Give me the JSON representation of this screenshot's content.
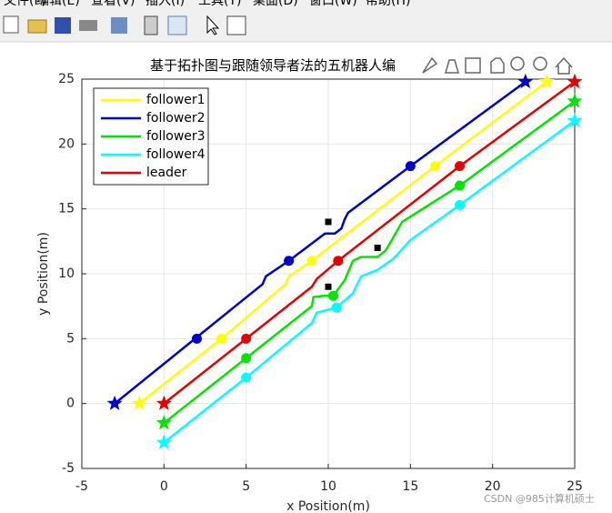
{
  "menu": [
    "文件(F)",
    "编辑(E)",
    "查看(V)",
    "插入(I)",
    "工具(T)",
    "桌面(D)",
    "窗口(W)",
    "帮助(H)"
  ],
  "watermark": "CSDN @985计算机硕士",
  "chart_data": {
    "type": "line",
    "title": "基于拓扑图与跟随领导者法的五机器人编",
    "x_label": "x Position(m)",
    "y_label": "y Position(m)",
    "xlim": [
      -5,
      25
    ],
    "ylim": [
      -5,
      25
    ],
    "xticks": [
      -5,
      0,
      5,
      10,
      15,
      20,
      25
    ],
    "yticks": [
      -5,
      0,
      5,
      10,
      15,
      20,
      25
    ],
    "grid": true,
    "legend": "upper left",
    "series": [
      {
        "name": "follower1",
        "color": "#ffff00",
        "x": [
          -1.5,
          3.5,
          7.4,
          7.6,
          9,
          16.5,
          23.3
        ],
        "y": [
          0,
          5,
          9.2,
          9.8,
          11,
          18.3,
          24.8
        ],
        "marker_x": [
          -1.5,
          3.5,
          9,
          16.5,
          23.3
        ],
        "marker_y": [
          0,
          5,
          11,
          18.3,
          24.8
        ]
      },
      {
        "name": "follower2",
        "color": "#0000cc",
        "x": [
          -3,
          6,
          6.2,
          7.6,
          9.8,
          10.4,
          10.8,
          11,
          11.2,
          15,
          22
        ],
        "y": [
          0,
          9.2,
          9.8,
          11,
          13.1,
          13.1,
          13.5,
          14.2,
          14.7,
          18.3,
          24.8
        ],
        "marker_x": [
          -3,
          2,
          7.6,
          15,
          22
        ],
        "marker_y": [
          0,
          5,
          11,
          18.3,
          24.8
        ]
      },
      {
        "name": "follower3",
        "color": "#00e600",
        "x": [
          0,
          5,
          9,
          9.1,
          9.7,
          10.3,
          11,
          11.5,
          12,
          13,
          13.5,
          14.5,
          18,
          25
        ],
        "y": [
          -1.5,
          3.5,
          7.5,
          8.2,
          8.3,
          8.3,
          9.5,
          11,
          11.3,
          11.3,
          11.8,
          14,
          16.8,
          23.3
        ],
        "marker_x": [
          0,
          5,
          10.3,
          18,
          25
        ],
        "marker_y": [
          -1.5,
          3.5,
          8.3,
          16.8,
          23.3
        ]
      },
      {
        "name": "follower4",
        "color": "#00ffff",
        "x": [
          0,
          5,
          9,
          9.3,
          10.5,
          11.5,
          12,
          13,
          14,
          15,
          18,
          25
        ],
        "y": [
          -3,
          2,
          6.2,
          7,
          7.4,
          8.5,
          9.8,
          10.3,
          11.2,
          12.6,
          15.3,
          21.8
        ],
        "marker_x": [
          0,
          5,
          10.5,
          18,
          25
        ],
        "marker_y": [
          -3,
          2,
          7.4,
          15.3,
          21.8
        ]
      },
      {
        "name": "leader",
        "color": "#e60000",
        "x": [
          0,
          5,
          9,
          9.3,
          10.6,
          18,
          25
        ],
        "y": [
          0,
          5,
          9,
          9.6,
          11,
          18.3,
          24.8
        ],
        "marker_x": [
          0,
          5,
          10.6,
          18,
          25
        ],
        "marker_y": [
          0,
          5,
          11,
          18.3,
          24.8
        ]
      }
    ],
    "obstacles": {
      "color": "#000000",
      "x": [
        10,
        13,
        10
      ],
      "y": [
        14,
        12,
        9
      ]
    }
  }
}
